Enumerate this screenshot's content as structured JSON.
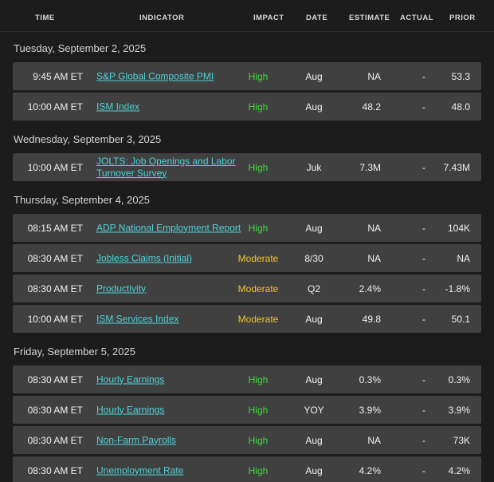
{
  "header": {
    "time": "TIME",
    "indicator": "INDICATOR",
    "impact": "IMPACT",
    "date": "DATE",
    "estimate": "ESTIMATE",
    "actual": "ACTUAL",
    "prior": "PRIOR"
  },
  "colors": {
    "high": "#3ddc3d",
    "moderate": "#f2c230",
    "link": "#4fd2d8"
  },
  "sections": [
    {
      "title": "Tuesday, September 2, 2025",
      "rows": [
        {
          "time": "9:45 AM ET",
          "indicator": "S&P Global Composite PMI",
          "impact": "High",
          "date": "Aug",
          "estimate": "NA",
          "actual": "-",
          "prior": "53.3"
        },
        {
          "time": "10:00 AM ET",
          "indicator": "ISM Index",
          "impact": "High",
          "date": "Aug",
          "estimate": "48.2",
          "actual": "-",
          "prior": "48.0"
        }
      ]
    },
    {
      "title": "Wednesday, September 3, 2025",
      "rows": [
        {
          "time": "10:00 AM ET",
          "indicator": "JOLTS: Job Openings and Labor Turnover Survey",
          "impact": "High",
          "date": "Juk",
          "estimate": "7.3M",
          "actual": "-",
          "prior": "7.43M"
        }
      ]
    },
    {
      "title": "Thursday, September 4, 2025",
      "rows": [
        {
          "time": "08:15 AM ET",
          "indicator": "ADP National Employment Report",
          "impact": "High",
          "date": "Aug",
          "estimate": "NA",
          "actual": "-",
          "prior": "104K"
        },
        {
          "time": "08:30 AM ET",
          "indicator": "Jobless Claims (Initial)",
          "impact": "Moderate",
          "date": "8/30",
          "estimate": "NA",
          "actual": "-",
          "prior": "NA"
        },
        {
          "time": "08:30 AM ET",
          "indicator": "Productivity",
          "impact": "Moderate",
          "date": "Q2",
          "estimate": "2.4%",
          "actual": "-",
          "prior": "-1.8%"
        },
        {
          "time": "10:00 AM ET",
          "indicator": "ISM Services Index",
          "impact": "Moderate",
          "date": "Aug",
          "estimate": "49.8",
          "actual": "-",
          "prior": "50.1"
        }
      ]
    },
    {
      "title": "Friday, September 5, 2025",
      "rows": [
        {
          "time": "08:30 AM ET",
          "indicator": "Hourly Earnings",
          "impact": "High",
          "date": "Aug",
          "estimate": "0.3%",
          "actual": "-",
          "prior": "0.3%"
        },
        {
          "time": "08:30 AM ET",
          "indicator": "Hourly Earnings",
          "impact": "High",
          "date": "YOY",
          "estimate": "3.9%",
          "actual": "-",
          "prior": "3.9%"
        },
        {
          "time": "08:30 AM ET",
          "indicator": "Non-Farm Payrolls",
          "impact": "High",
          "date": "Aug",
          "estimate": "NA",
          "actual": "-",
          "prior": "73K"
        },
        {
          "time": "08:30 AM ET",
          "indicator": "Unemployment Rate",
          "impact": "High",
          "date": "Aug",
          "estimate": "4.2%",
          "actual": "-",
          "prior": "4.2%"
        }
      ]
    }
  ]
}
